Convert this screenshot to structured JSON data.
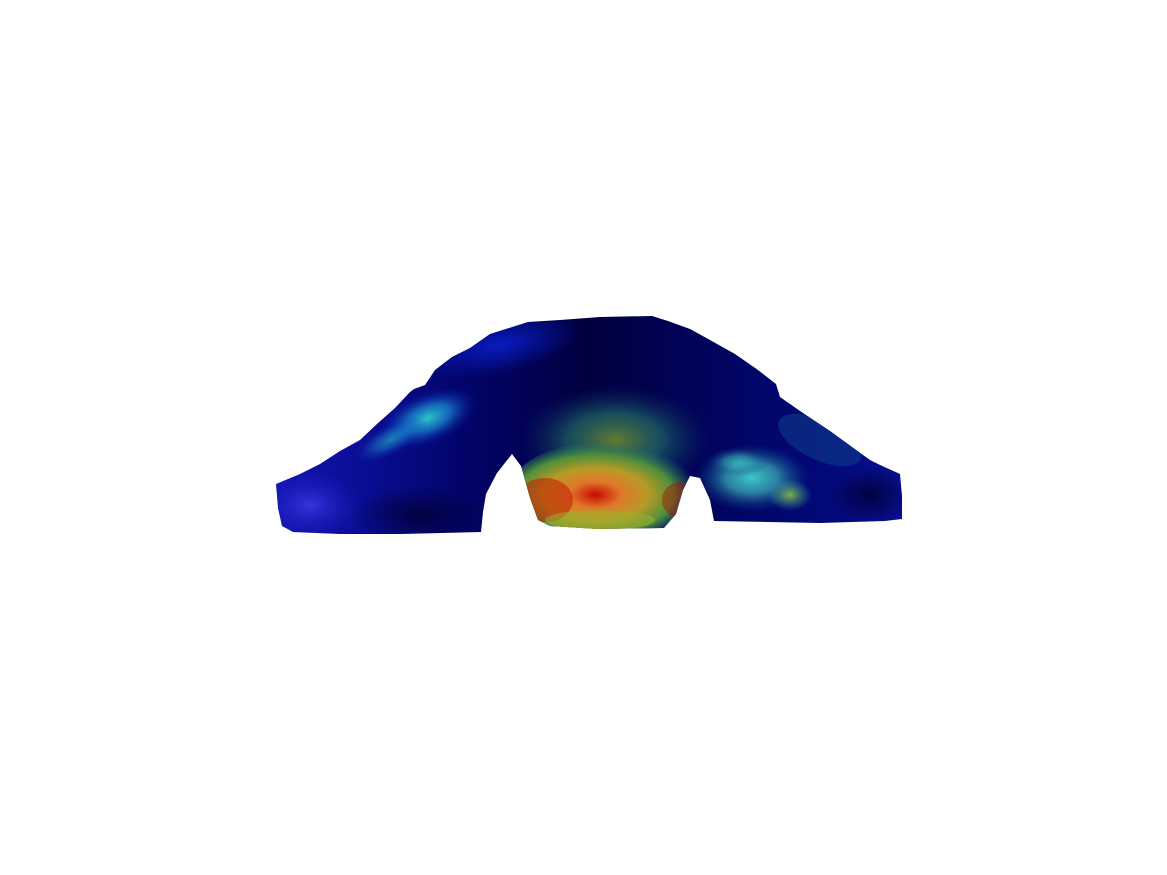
{
  "scene": {
    "subject": "car-body-surface-field",
    "colormap": "jet",
    "colors": {
      "background": "#ffffff",
      "low": "#00004a",
      "low_mid": "#0a1ab0",
      "mid": "#1fc4c8",
      "mid_high": "#8fbf3a",
      "high": "#e6a020",
      "max": "#b80000"
    }
  }
}
